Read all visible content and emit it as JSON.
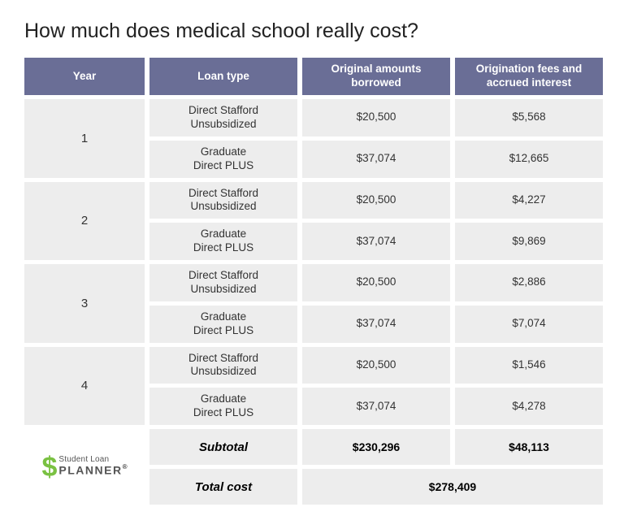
{
  "title": "How much does medical school really cost?",
  "columns": [
    "Year",
    "Loan type",
    "Original amounts borrowed",
    "Origination fees and accrued interest"
  ],
  "years": [
    {
      "year": "1",
      "rows": [
        {
          "loan_type": "Direct Stafford\nUnsubsidized",
          "borrowed": "$20,500",
          "fees": "$5,568"
        },
        {
          "loan_type": "Graduate\nDirect PLUS",
          "borrowed": "$37,074",
          "fees": "$12,665"
        }
      ]
    },
    {
      "year": "2",
      "rows": [
        {
          "loan_type": "Direct Stafford\nUnsubsidized",
          "borrowed": "$20,500",
          "fees": "$4,227"
        },
        {
          "loan_type": "Graduate\nDirect PLUS",
          "borrowed": "$37,074",
          "fees": "$9,869"
        }
      ]
    },
    {
      "year": "3",
      "rows": [
        {
          "loan_type": "Direct Stafford\nUnsubsidized",
          "borrowed": "$20,500",
          "fees": "$2,886"
        },
        {
          "loan_type": "Graduate\nDirect PLUS",
          "borrowed": "$37,074",
          "fees": "$7,074"
        }
      ]
    },
    {
      "year": "4",
      "rows": [
        {
          "loan_type": "Direct Stafford\nUnsubsidized",
          "borrowed": "$20,500",
          "fees": "$1,546"
        },
        {
          "loan_type": "Graduate\nDirect PLUS",
          "borrowed": "$37,074",
          "fees": "$4,278"
        }
      ]
    }
  ],
  "subtotal": {
    "label": "Subtotal",
    "borrowed": "$230,296",
    "fees": "$48,113"
  },
  "total": {
    "label": "Total cost",
    "value": "$278,409"
  },
  "logo": {
    "symbol": "$",
    "line1": "Student Loan",
    "line2": "PLANNER",
    "reg": "®"
  },
  "colors": {
    "header_bg": "#6a6e96",
    "header_text": "#ffffff",
    "cell_bg": "#ededed",
    "text": "#333333",
    "logo_green": "#7ac142",
    "logo_gray": "#555555",
    "page_bg": "#ffffff"
  }
}
